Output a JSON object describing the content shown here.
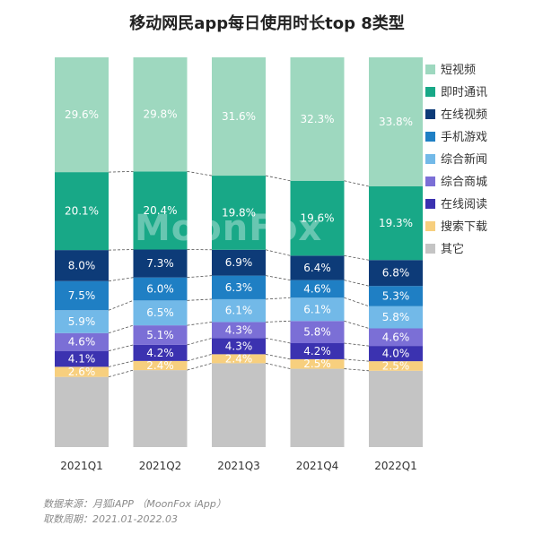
{
  "chart_data": {
    "type": "stacked-bar-100",
    "title": "移动网民app每日使用时长top 8类型",
    "categories": [
      "2021Q1",
      "2021Q2",
      "2021Q3",
      "2021Q4",
      "2022Q1"
    ],
    "ylim": [
      0,
      100
    ],
    "grid": false,
    "legend_position": "right",
    "series": [
      {
        "name": "其它",
        "color": "#c4c4c4",
        "values": [
          18.1,
          20.1,
          22.4,
          20.5,
          20.0
        ],
        "labeled": false
      },
      {
        "name": "搜索下载",
        "color": "#f7cf7e",
        "values": [
          2.6,
          2.4,
          2.4,
          2.5,
          2.5
        ]
      },
      {
        "name": "在线阅读",
        "color": "#3b32b0",
        "values": [
          4.1,
          4.2,
          4.3,
          4.2,
          4.0
        ]
      },
      {
        "name": "综合商城",
        "color": "#7b6fd6",
        "values": [
          4.6,
          5.1,
          4.3,
          5.8,
          4.6
        ]
      },
      {
        "name": "综合新闻",
        "color": "#72b9e8",
        "values": [
          5.9,
          6.5,
          6.1,
          6.1,
          5.8
        ]
      },
      {
        "name": "手机游戏",
        "color": "#1f7fc4",
        "values": [
          7.5,
          6.0,
          6.3,
          4.6,
          5.3
        ]
      },
      {
        "name": "在线视频",
        "color": "#0d3b78",
        "values": [
          8.0,
          7.3,
          6.9,
          6.4,
          6.8
        ]
      },
      {
        "name": "即时通讯",
        "color": "#18a887",
        "values": [
          20.1,
          20.4,
          19.8,
          19.6,
          19.3
        ]
      },
      {
        "name": "短视频",
        "color": "#9ed8bf",
        "values": [
          29.6,
          29.8,
          31.6,
          32.3,
          33.8
        ]
      }
    ],
    "label_suffix": "%",
    "legend_order": [
      "短视频",
      "即时通讯",
      "在线视频",
      "手机游戏",
      "综合新闻",
      "综合商城",
      "在线阅读",
      "搜索下载",
      "其它"
    ]
  },
  "watermark": "MoonFox",
  "footer": {
    "source": "数据来源：月狐iAPP （MoonFox iApp）",
    "period": "取数周期：2021.01-2022.03"
  }
}
